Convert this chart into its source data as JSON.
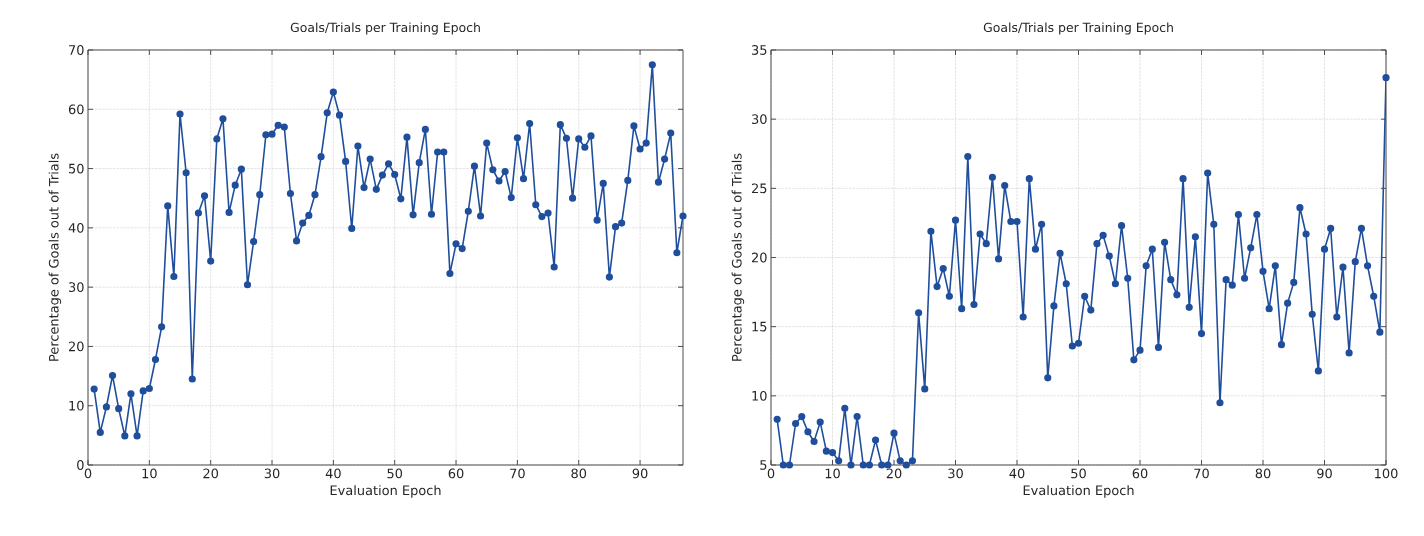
{
  "chart_data": [
    {
      "type": "line",
      "title": "Goals/Trials per Training Epoch",
      "xlabel": "Evaluation Epoch",
      "ylabel": "Percentage of Goals out of Trials",
      "x": [
        1,
        2,
        3,
        4,
        5,
        6,
        7,
        8,
        9,
        10,
        11,
        12,
        13,
        14,
        15,
        16,
        17,
        18,
        19,
        20,
        21,
        22,
        23,
        24,
        25,
        26,
        27,
        28,
        29,
        30,
        31,
        32,
        33,
        34,
        35,
        36,
        37,
        38,
        39,
        40,
        41,
        42,
        43,
        44,
        45,
        46,
        47,
        48,
        49,
        50,
        51,
        52,
        53,
        54,
        55,
        56,
        57,
        58,
        59,
        60,
        61,
        62,
        63,
        64,
        65,
        66,
        67,
        68,
        69,
        70,
        71,
        72,
        73,
        74,
        75,
        76,
        77,
        78,
        79,
        80,
        81,
        82,
        83,
        84,
        85,
        86,
        87,
        88,
        89,
        90,
        91,
        92,
        93,
        94,
        95,
        96,
        97
      ],
      "series": [
        {
          "color": "#1f4e9c",
          "values": [
            12.8,
            5.5,
            9.8,
            15.1,
            9.5,
            4.9,
            12,
            4.9,
            12.5,
            12.9,
            17.8,
            23.3,
            43.7,
            31.8,
            59.2,
            49.3,
            14.5,
            42.5,
            45.4,
            34.4,
            55,
            58.4,
            42.6,
            47.2,
            49.9,
            30.4,
            37.7,
            45.6,
            55.7,
            55.8,
            57.3,
            57,
            45.8,
            37.8,
            40.8,
            42.1,
            45.6,
            52,
            59.4,
            62.9,
            59,
            51.2,
            39.9,
            53.8,
            46.8,
            51.6,
            46.5,
            48.9,
            50.8,
            49,
            44.9,
            55.3,
            42.2,
            51,
            56.6,
            42.3,
            52.8,
            52.8,
            32.3,
            37.3,
            36.5,
            42.8,
            50.4,
            42,
            54.3,
            49.8,
            47.9,
            49.5,
            45.1,
            55.2,
            48.3,
            57.6,
            43.9,
            41.9,
            42.5,
            33.4,
            57.4,
            55.1,
            45,
            55,
            53.6,
            55.5,
            41.3,
            47.5,
            31.7,
            40.2,
            40.8,
            48,
            57.2,
            53.3,
            54.3,
            67.5,
            47.7,
            51.6,
            56,
            35.8,
            42
          ]
        }
      ],
      "xlim": [
        0,
        97
      ],
      "ylim": [
        0,
        70
      ],
      "xticks": [
        0,
        10,
        20,
        30,
        40,
        50,
        60,
        70,
        80,
        90
      ],
      "yticks": [
        0,
        10,
        20,
        30,
        40,
        50,
        60,
        70
      ],
      "grid": true,
      "marker": "circle",
      "line_style": "solid"
    },
    {
      "type": "line",
      "title": "Goals/Trials per Training Epoch",
      "xlabel": "Evaluation Epoch",
      "ylabel": "Percentage of Goals out of Trials",
      "x": [
        1,
        2,
        3,
        4,
        5,
        6,
        7,
        8,
        9,
        10,
        11,
        12,
        13,
        14,
        15,
        16,
        17,
        18,
        19,
        20,
        21,
        22,
        23,
        24,
        25,
        26,
        27,
        28,
        29,
        30,
        31,
        32,
        33,
        34,
        35,
        36,
        37,
        38,
        39,
        40,
        41,
        42,
        43,
        44,
        45,
        46,
        47,
        48,
        49,
        50,
        51,
        52,
        53,
        54,
        55,
        56,
        57,
        58,
        59,
        60,
        61,
        62,
        63,
        64,
        65,
        66,
        67,
        68,
        69,
        70,
        71,
        72,
        73,
        74,
        75,
        76,
        77,
        78,
        79,
        80,
        81,
        82,
        83,
        84,
        85,
        86,
        87,
        88,
        89,
        90,
        91,
        92,
        93,
        94,
        95,
        96,
        97,
        98,
        99,
        100
      ],
      "series": [
        {
          "color": "#1f4e9c",
          "values": [
            8.3,
            5,
            5,
            8,
            8.5,
            7.4,
            6.7,
            8.1,
            6,
            5.9,
            5.3,
            9.1,
            5,
            8.5,
            5,
            5,
            6.8,
            5,
            5,
            7.3,
            5.3,
            5,
            5.3,
            16,
            10.5,
            21.9,
            17.9,
            19.2,
            17.2,
            22.7,
            16.3,
            27.3,
            16.6,
            21.7,
            21,
            25.8,
            19.9,
            25.2,
            22.6,
            22.6,
            15.7,
            25.7,
            20.6,
            22.4,
            11.3,
            16.5,
            20.3,
            18.1,
            13.6,
            13.8,
            17.2,
            16.2,
            21,
            21.6,
            20.1,
            18.1,
            22.3,
            18.5,
            12.6,
            13.3,
            19.4,
            20.6,
            13.5,
            21.1,
            18.4,
            17.3,
            25.7,
            16.4,
            21.5,
            14.5,
            26.1,
            22.4,
            9.5,
            18.4,
            18,
            23.1,
            18.5,
            20.7,
            23.1,
            19,
            16.3,
            19.4,
            13.7,
            16.7,
            18.2,
            23.6,
            21.7,
            15.9,
            11.8,
            20.6,
            22.1,
            15.7,
            19.3,
            13.1,
            19.7,
            22.1,
            19.4,
            17.2,
            14.6,
            33
          ]
        }
      ],
      "xlim": [
        0,
        100
      ],
      "ylim": [
        5,
        35
      ],
      "xticks": [
        0,
        10,
        20,
        30,
        40,
        50,
        60,
        70,
        80,
        90,
        100
      ],
      "yticks": [
        5,
        10,
        15,
        20,
        25,
        30,
        35
      ],
      "grid": true,
      "marker": "circle",
      "line_style": "solid"
    }
  ]
}
